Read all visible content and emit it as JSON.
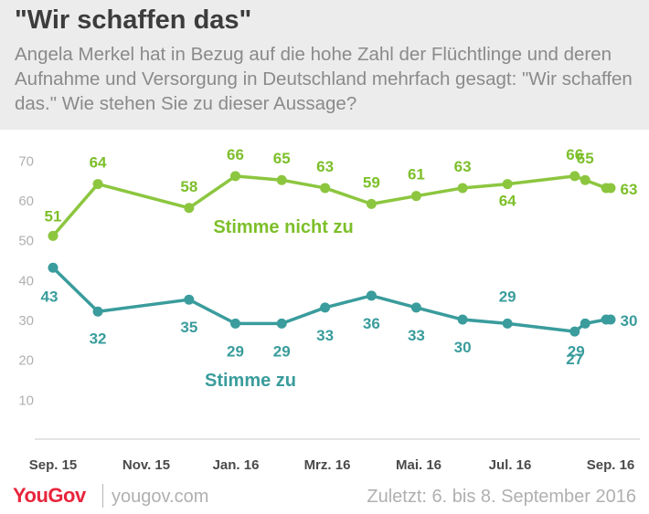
{
  "header": {
    "title": "\"Wir schaffen das\"",
    "subtitle": "Angela Merkel hat in Bezug auf die hohe Zahl der Flüchtlinge und deren Aufnahme und Versorgung in Deutschland mehrfach gesagt: \"Wir schaffen das.\" Wie stehen Sie zu dieser Aussage?"
  },
  "footer": {
    "logo": "YouGov",
    "site": "yougov.com",
    "note": "Zuletzt: 6. bis 8. September 2016"
  },
  "chart_data": {
    "type": "line",
    "x_tick_labels": [
      "Sep. 15",
      "Nov. 15",
      "Jan. 16",
      "Mrz. 16",
      "Mai. 16",
      "Jul. 16",
      "Sep. 16"
    ],
    "y_tick_labels": [
      "10",
      "20",
      "30",
      "40",
      "50",
      "60",
      "70"
    ],
    "ylim": [
      0,
      70
    ],
    "grid": false,
    "colors": {
      "nicht_zu": "#8cc63f",
      "zu": "#3a9c9c",
      "nicht_zu_text": "#7dbf2a",
      "zu_text": "#3a9c9c",
      "axis_text": "#b0b0b0"
    },
    "series": [
      {
        "name": "Stimme nicht zu",
        "x": [
          "2015-09",
          "2015-10",
          "2015-12",
          "2016-01",
          "2016-02",
          "2016-03",
          "2016-04",
          "2016-05",
          "2016-06",
          "2016-07",
          "2016-08-15",
          "2016-08-22",
          "2016-09-05",
          "2016-09-08"
        ],
        "values": [
          51,
          64,
          58,
          66,
          65,
          63,
          59,
          61,
          63,
          64,
          66,
          65,
          63,
          63
        ],
        "value_labels": [
          "51",
          "64",
          "58",
          "66",
          "65",
          "63",
          "59",
          "61",
          "63",
          "64",
          "66",
          "65",
          "",
          "63"
        ]
      },
      {
        "name": "Stimme zu",
        "x": [
          "2015-09",
          "2015-10",
          "2015-12",
          "2016-01",
          "2016-02",
          "2016-03",
          "2016-04",
          "2016-05",
          "2016-06",
          "2016-07",
          "2016-08-15",
          "2016-08-22",
          "2016-09-05",
          "2016-09-08"
        ],
        "values": [
          43,
          32,
          35,
          29,
          29,
          33,
          36,
          33,
          30,
          29,
          27,
          29,
          30,
          30
        ],
        "value_labels": [
          "43",
          "32",
          "35",
          "29",
          "29",
          "33",
          "36",
          "33",
          "30",
          "29",
          "27",
          "29",
          "",
          "30"
        ]
      }
    ]
  }
}
